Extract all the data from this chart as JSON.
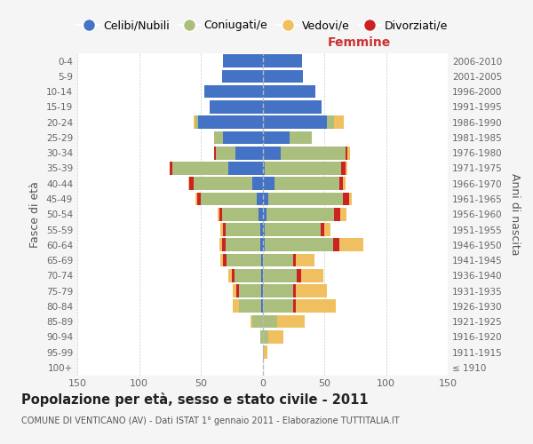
{
  "age_groups": [
    "100+",
    "95-99",
    "90-94",
    "85-89",
    "80-84",
    "75-79",
    "70-74",
    "65-69",
    "60-64",
    "55-59",
    "50-54",
    "45-49",
    "40-44",
    "35-39",
    "30-34",
    "25-29",
    "20-24",
    "15-19",
    "10-14",
    "5-9",
    "0-4"
  ],
  "birth_years": [
    "≤ 1910",
    "1911-1915",
    "1916-1920",
    "1921-1925",
    "1926-1930",
    "1931-1935",
    "1936-1940",
    "1941-1945",
    "1946-1950",
    "1951-1955",
    "1956-1960",
    "1961-1965",
    "1966-1970",
    "1971-1975",
    "1976-1980",
    "1981-1985",
    "1986-1990",
    "1991-1995",
    "1996-2000",
    "2001-2005",
    "2006-2010"
  ],
  "male_celibi": [
    0,
    0,
    0,
    0,
    1,
    1,
    1,
    1,
    2,
    2,
    3,
    5,
    8,
    28,
    22,
    32,
    52,
    43,
    47,
    33,
    32
  ],
  "male_coniugati": [
    0,
    0,
    2,
    8,
    18,
    18,
    22,
    28,
    28,
    28,
    30,
    45,
    48,
    45,
    16,
    7,
    2,
    0,
    0,
    0,
    0
  ],
  "male_vedovi": [
    0,
    0,
    0,
    2,
    5,
    3,
    3,
    2,
    2,
    2,
    1,
    1,
    1,
    0,
    0,
    0,
    2,
    0,
    0,
    0,
    0
  ],
  "male_divorziati": [
    0,
    0,
    0,
    0,
    0,
    2,
    2,
    3,
    3,
    2,
    2,
    3,
    3,
    2,
    1,
    0,
    0,
    0,
    0,
    0,
    0
  ],
  "female_nubili": [
    0,
    0,
    0,
    0,
    0,
    0,
    0,
    0,
    2,
    2,
    3,
    5,
    10,
    2,
    15,
    22,
    52,
    48,
    43,
    33,
    32
  ],
  "female_coniugate": [
    0,
    1,
    5,
    12,
    25,
    25,
    28,
    25,
    55,
    45,
    55,
    60,
    52,
    62,
    52,
    18,
    6,
    0,
    0,
    0,
    0
  ],
  "female_vedove": [
    0,
    3,
    12,
    22,
    32,
    25,
    18,
    15,
    20,
    5,
    5,
    2,
    2,
    2,
    2,
    0,
    8,
    0,
    0,
    0,
    0
  ],
  "female_divorziate": [
    0,
    0,
    0,
    0,
    2,
    2,
    3,
    2,
    5,
    3,
    5,
    5,
    3,
    3,
    2,
    0,
    0,
    0,
    0,
    0,
    0
  ],
  "color_celibi": "#4472C4",
  "color_coniugati": "#AABF7E",
  "color_vedovi": "#F0C060",
  "color_divorziati": "#CC2222",
  "legend_labels": [
    "Celibi/Nubili",
    "Coniugati/e",
    "Vedovi/e",
    "Divorziati/e"
  ],
  "title": "Popolazione per età, sesso e stato civile - 2011",
  "subtitle": "COMUNE DI VENTICANO (AV) - Dati ISTAT 1° gennaio 2011 - Elaborazione TUTTITALIA.IT",
  "label_femmine": "Femmine",
  "ylabel_left": "Fasce di età",
  "ylabel_right": "Anni di nascita",
  "xlim": 150,
  "bg_color": "#f5f5f5",
  "plot_bg": "#ffffff"
}
